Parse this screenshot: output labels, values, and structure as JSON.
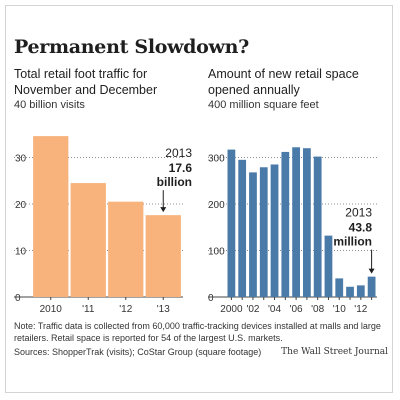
{
  "headline": "Permanent Slowdown?",
  "chart_data": [
    {
      "type": "bar",
      "title": "Total retail foot traffic for November and December",
      "unit_label": "40 billion visits",
      "categories": [
        "2010",
        "'11",
        "'12",
        "'13"
      ],
      "values": [
        34.6,
        24.5,
        20.5,
        17.6
      ],
      "ylim": [
        0,
        40
      ],
      "yticks": [
        0,
        10,
        20,
        30
      ],
      "grid": true,
      "color": "#f8b27c",
      "annotation": {
        "year": "2013",
        "value": "17.6",
        "unit": "billion"
      }
    },
    {
      "type": "bar",
      "title": "Amount of new retail space opened annually",
      "unit_label": "400 million square feet",
      "categories": [
        "2000",
        "'01",
        "'02",
        "'03",
        "'04",
        "'05",
        "'06",
        "'07",
        "'08",
        "'09",
        "'10",
        "'11",
        "'12",
        "'13"
      ],
      "tick_labels": [
        "2000",
        "",
        "'02",
        "",
        "'04",
        "",
        "'06",
        "",
        "'08",
        "",
        "'10",
        "",
        "'12",
        ""
      ],
      "values": [
        317,
        295,
        268,
        279,
        285,
        312,
        322,
        320,
        302,
        132,
        40,
        22,
        25,
        43.8
      ],
      "ylim": [
        0,
        400
      ],
      "yticks": [
        0,
        100,
        200,
        300
      ],
      "grid": true,
      "color": "#4a7aa8",
      "annotation": {
        "year": "2013",
        "value": "43.8",
        "unit": "million"
      }
    }
  ],
  "footnote": "Note: Traffic data is collected from 60,000 traffic-tracking devices installed at malls and large retailers. Retail space is reported for 54 of the largest U.S. markets.",
  "sources": "Sources: ShopperTrak (visits); CoStar Group (square footage)",
  "credit": "The Wall Street Journal"
}
